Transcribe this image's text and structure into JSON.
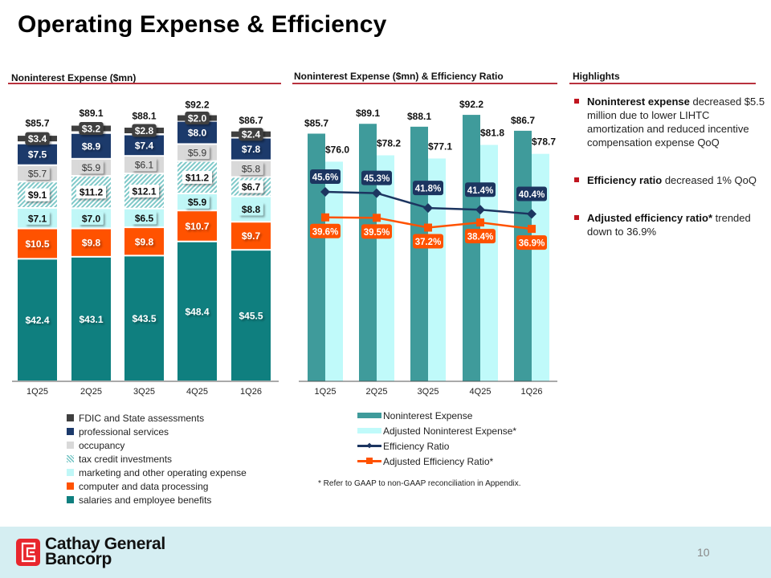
{
  "page": {
    "title": "Operating Expense & Efficiency",
    "page_number": "10",
    "logo_line1": "Cathay General",
    "logo_line2": "Bancorp"
  },
  "sections": {
    "left_header": "Noninterest Expense ($mn)",
    "middle_header": "Noninterest Expense ($mn) & Efficiency Ratio",
    "right_header": "Highlights"
  },
  "highlights": [
    {
      "bold": "Noninterest expense",
      "text": " decreased $5.5 million due to lower LIHTC amortization and reduced incentive compensation expense QoQ"
    },
    {
      "bold": "Efficiency ratio",
      "text": " decreased 1% QoQ"
    },
    {
      "bold": "Adjusted efficiency ratio*",
      "text": " trended down to 36.9%"
    }
  ],
  "footnote": "* Refer to GAAP to non-GAAP reconciliation in Appendix.",
  "colors": {
    "accent_rule": "#b8313d",
    "salaries": "#0f7f7f",
    "computer": "#ff5200",
    "marketing": "#c0f7f7",
    "tax_credit": "#7fc9c9",
    "occupancy": "#d9d9d9",
    "professional": "#1c3a6b",
    "fdic": "#3f3f3f",
    "nie_bar": "#3f9b9b",
    "adj_nie_bar": "#c0fafa",
    "efficiency_line": "#1c3560",
    "adj_efficiency_line": "#ff5200"
  },
  "chart_data": [
    {
      "type": "bar",
      "stacked": true,
      "title": "Noninterest Expense ($mn)",
      "xlabel": "",
      "ylabel": "",
      "ylim": [
        0,
        100
      ],
      "grid": false,
      "legend_position": "bottom",
      "categories": [
        "1Q25",
        "2Q25",
        "3Q25",
        "4Q25",
        "1Q26"
      ],
      "totals": [
        85.7,
        89.1,
        88.1,
        92.2,
        86.7
      ],
      "total_labels": [
        "$85.7",
        "$89.1",
        "$88.1",
        "$92.2",
        "$86.7"
      ],
      "series": [
        {
          "name": "salaries and employee benefits",
          "key": "salaries",
          "values": [
            42.4,
            43.1,
            43.5,
            48.4,
            45.5
          ],
          "labels": [
            "$42.4",
            "$43.1",
            "$43.5",
            "$48.4",
            "$45.5"
          ]
        },
        {
          "name": "computer and data processing",
          "key": "computer",
          "values": [
            10.5,
            9.8,
            9.8,
            10.7,
            9.7
          ],
          "labels": [
            "$10.5",
            "$9.8",
            "$9.8",
            "$10.7",
            "$9.7"
          ]
        },
        {
          "name": "marketing and other operating expense",
          "key": "marketing",
          "values": [
            7.1,
            7.0,
            6.5,
            5.9,
            8.8
          ],
          "labels": [
            "$7.1",
            "$7.0",
            "$6.5",
            "$5.9",
            "$8.8"
          ]
        },
        {
          "name": "tax credit investments",
          "key": "tax_credit",
          "values": [
            9.1,
            11.2,
            12.1,
            11.2,
            6.7
          ],
          "labels": [
            "$9.1",
            "$11.2",
            "$12.1",
            "$11.2",
            "$6.7"
          ]
        },
        {
          "name": "occupancy",
          "key": "occupancy",
          "values": [
            5.7,
            5.9,
            6.1,
            5.9,
            5.8
          ],
          "labels": [
            "$5.7",
            "$5.9",
            "$6.1",
            "$5.9",
            "$5.8"
          ]
        },
        {
          "name": "professional services",
          "key": "professional",
          "values": [
            7.5,
            8.9,
            7.4,
            8.0,
            7.8
          ],
          "labels": [
            "$7.5",
            "$8.9",
            "$7.4",
            "$8.0",
            "$7.8"
          ]
        },
        {
          "name": "FDIC and State assessments",
          "key": "fdic",
          "values": [
            3.4,
            3.2,
            2.8,
            2.0,
            2.4
          ],
          "labels": [
            "$3.4",
            "$3.2",
            "$2.8",
            "$2.0",
            "$2.4"
          ]
        }
      ],
      "legend_order": [
        "FDIC and State assessments",
        "professional services",
        "occupancy",
        "tax credit investments",
        "marketing and other operating expense",
        "computer and data processing",
        "salaries and employee benefits"
      ]
    },
    {
      "type": "bar",
      "combo_with": "line",
      "title": "Noninterest Expense ($mn) & Efficiency Ratio",
      "xlabel": "",
      "ylabel": "",
      "ylim": [
        0,
        100
      ],
      "grid": false,
      "legend_position": "bottom",
      "categories": [
        "1Q25",
        "2Q25",
        "3Q25",
        "4Q25",
        "1Q26"
      ],
      "series": [
        {
          "name": "Noninterest Expense",
          "type": "bar",
          "values": [
            85.7,
            89.1,
            88.1,
            92.2,
            86.7
          ],
          "labels": [
            "$85.7",
            "$89.1",
            "$88.1",
            "$92.2",
            "$86.7"
          ]
        },
        {
          "name": "Adjusted Noninterest Expense*",
          "type": "bar",
          "values": [
            76.0,
            78.2,
            77.1,
            81.8,
            78.7
          ],
          "labels": [
            "$76.0",
            "$78.2",
            "$77.1",
            "$81.8",
            "$78.7"
          ]
        },
        {
          "name": "Efficiency Ratio",
          "type": "line",
          "marker": "diamond",
          "values": [
            45.6,
            45.3,
            41.8,
            41.4,
            40.4
          ],
          "labels": [
            "45.6%",
            "45.3%",
            "41.8%",
            "41.4%",
            "40.4%"
          ]
        },
        {
          "name": "Adjusted Efficiency Ratio*",
          "type": "line",
          "marker": "square",
          "values": [
            39.6,
            39.5,
            37.2,
            38.4,
            36.9
          ],
          "labels": [
            "39.6%",
            "39.5%",
            "37.2%",
            "38.4%",
            "36.9%"
          ]
        }
      ]
    }
  ]
}
